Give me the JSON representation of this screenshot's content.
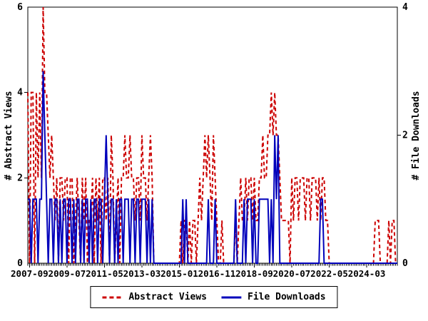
{
  "figure": {
    "background": "#ffffff",
    "axis_color": "#000000"
  },
  "chart_data": {
    "type": "line",
    "title": "",
    "grid": false,
    "legend_position": "bottom-center-boxed",
    "x_axis": {
      "tick_labels": [
        "2007-09",
        "2009-07",
        "2011-05",
        "2013-03",
        "2015-01",
        "2016-11",
        "2018-09",
        "2020-07",
        "2022-05",
        "2024-03"
      ],
      "tick_month_indices": [
        1,
        23,
        45,
        67,
        89,
        111,
        133,
        155,
        177,
        199
      ],
      "months_total": 218,
      "minor_tick_every_month": true
    },
    "left_axis": {
      "label": "# Abstract Views",
      "range": [
        0,
        6
      ],
      "ticks": [
        0,
        2,
        4,
        6
      ]
    },
    "right_axis": {
      "label": "# File Downloads",
      "range": [
        0,
        4
      ],
      "ticks": [
        0,
        2,
        4
      ]
    },
    "series": [
      {
        "name": "Abstract Views",
        "axis": "left",
        "color": "#cc0000",
        "style": "dashed",
        "values": [
          4,
          0,
          4,
          4,
          0,
          4,
          2,
          4,
          2,
          6,
          4,
          4,
          3,
          2,
          3,
          2,
          1,
          2,
          0,
          2,
          2,
          1,
          2,
          2,
          0,
          2,
          2,
          0,
          1,
          2,
          1,
          0,
          2,
          1,
          2,
          0,
          1,
          1,
          2,
          0,
          2,
          1,
          2,
          0,
          2,
          2,
          1,
          2,
          0,
          3,
          2,
          0,
          1,
          2,
          0,
          2,
          2,
          3,
          2,
          2,
          3,
          2,
          2,
          1,
          2,
          2,
          1,
          3,
          2,
          2,
          1,
          2,
          3,
          2,
          0,
          0,
          0,
          0,
          0,
          0,
          0,
          0,
          0,
          0,
          0,
          0,
          0,
          0,
          0,
          0,
          1,
          0,
          1,
          1,
          0,
          1,
          0,
          1,
          1,
          0,
          1,
          2,
          1,
          2,
          3,
          2,
          3,
          2,
          1,
          3,
          2,
          1,
          0,
          0,
          1,
          0,
          0,
          0,
          0,
          0,
          0,
          0,
          1,
          0,
          1,
          2,
          1,
          1,
          2,
          1,
          2,
          2,
          1,
          2,
          1,
          1,
          2,
          2,
          3,
          2,
          2,
          3,
          3,
          4,
          3,
          4,
          3,
          3,
          2,
          1,
          1,
          1,
          1,
          1,
          0,
          2,
          1,
          2,
          2,
          1,
          2,
          2,
          2,
          1,
          2,
          2,
          1,
          2,
          2,
          2,
          1,
          2,
          1,
          2,
          2,
          1,
          1,
          0,
          0,
          0,
          0,
          0,
          0,
          0,
          0,
          0,
          0,
          0,
          0,
          0,
          0,
          0,
          0,
          0,
          0,
          0,
          0,
          0,
          0,
          0,
          0,
          0,
          0,
          0,
          1,
          1,
          1,
          0,
          0,
          0,
          0,
          0,
          1,
          0,
          1,
          1,
          0,
          0
        ]
      },
      {
        "name": "File Downloads",
        "axis": "right",
        "color": "#0000bb",
        "style": "solid",
        "values": [
          1,
          1,
          0,
          1,
          1,
          1,
          0,
          1,
          1,
          3,
          2,
          1,
          0,
          1,
          1,
          0,
          1,
          1,
          0,
          1,
          0,
          1,
          1,
          0,
          1,
          1,
          0,
          1,
          0,
          1,
          1,
          0,
          1,
          0,
          1,
          1,
          0,
          1,
          0,
          1,
          1,
          0,
          1,
          1,
          0,
          1,
          2,
          1,
          0,
          1,
          1,
          0,
          1,
          0,
          1,
          1,
          0,
          1,
          1,
          1,
          0,
          1,
          1,
          0,
          1,
          1,
          0,
          1,
          1,
          1,
          0,
          1,
          0,
          1,
          0,
          0,
          0,
          0,
          0,
          0,
          0,
          0,
          0,
          0,
          0,
          0,
          0,
          0,
          0,
          0,
          0,
          1,
          0,
          1,
          0,
          0,
          0,
          0,
          0,
          0,
          0,
          0,
          0,
          0,
          0,
          0,
          1,
          0,
          0,
          0,
          1,
          0,
          0,
          0,
          0,
          0,
          0,
          0,
          0,
          0,
          0,
          0,
          1,
          0,
          0,
          0,
          0,
          1,
          0,
          1,
          1,
          1,
          0,
          1,
          0,
          0,
          1,
          1,
          1,
          1,
          1,
          1,
          0,
          1,
          0,
          2,
          1,
          2,
          0,
          0,
          0,
          0,
          0,
          0,
          0,
          0,
          0,
          0,
          0,
          0,
          0,
          0,
          0,
          0,
          0,
          0,
          0,
          0,
          0,
          0,
          0,
          0,
          1,
          1,
          0,
          0,
          0,
          0,
          0,
          0,
          0,
          0,
          0,
          0,
          0,
          0,
          0,
          0,
          0,
          0,
          0,
          0,
          0,
          0,
          0,
          0,
          0,
          0,
          0,
          0,
          0,
          0,
          0,
          0,
          0,
          0,
          0,
          0,
          0,
          0,
          0,
          0,
          0,
          0,
          0,
          0,
          0,
          0
        ]
      }
    ]
  }
}
